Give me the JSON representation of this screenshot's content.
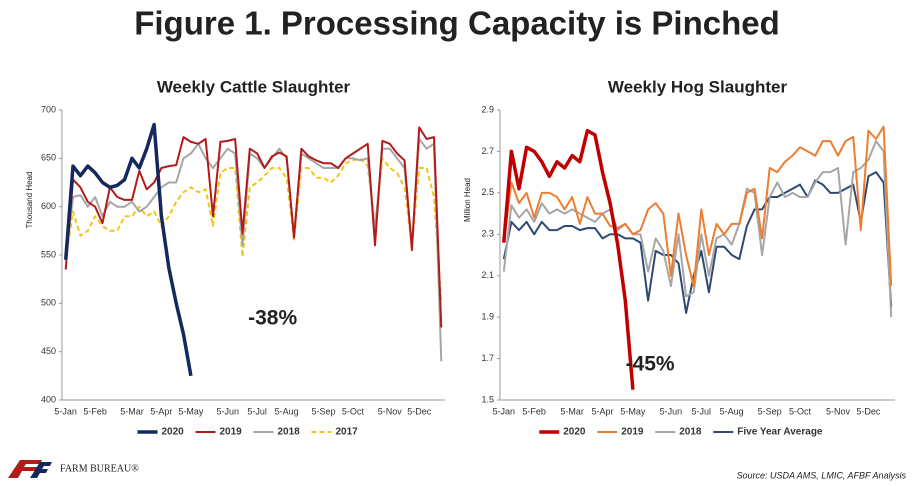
{
  "title": "Figure 1. Processing Capacity is Pinched",
  "source": "Source: USDA AMS, LMIC, AFBF Analysis",
  "logo": "FARM BUREAU®",
  "chart_data": [
    {
      "type": "line",
      "title": "Weekly Cattle Slaughter",
      "y_label": "Thousand Head",
      "annotation": "-38%",
      "annotation_color": "#1f3f7a",
      "categories": [
        "5-Jan",
        null,
        null,
        null,
        "5-Feb",
        null,
        null,
        null,
        null,
        "5-Mar",
        null,
        null,
        null,
        "5-Apr",
        null,
        null,
        null,
        "5-May",
        null,
        null,
        null,
        null,
        "5-Jun",
        null,
        null,
        null,
        "5-Jul",
        null,
        null,
        null,
        "5-Aug",
        null,
        null,
        null,
        null,
        "5-Sep",
        null,
        null,
        null,
        "5-Oct",
        null,
        null,
        null,
        null,
        "5-Nov",
        null,
        null,
        null,
        "5-Dec",
        null,
        null,
        null
      ],
      "ylim": [
        400,
        700
      ],
      "yticks": [
        400,
        450,
        500,
        550,
        600,
        650,
        700
      ],
      "series": [
        {
          "name": "2020",
          "color": "#14285e",
          "width": 3.5,
          "values": [
            545,
            642,
            632,
            642,
            635,
            625,
            620,
            622,
            628,
            650,
            640,
            660,
            685,
            590,
            537,
            500,
            468,
            425,
            null,
            null,
            null,
            null,
            null,
            null,
            null,
            null,
            null,
            null,
            null,
            null,
            null,
            null,
            null,
            null,
            null,
            null,
            null,
            null,
            null,
            null,
            null,
            null,
            null,
            null,
            null,
            null,
            null,
            null,
            null,
            null,
            null,
            null
          ]
        },
        {
          "name": "2019",
          "color": "#b31b1b",
          "width": 2,
          "values": [
            535,
            628,
            620,
            605,
            600,
            583,
            620,
            610,
            607,
            607,
            637,
            618,
            625,
            640,
            642,
            643,
            672,
            667,
            665,
            670,
            590,
            667,
            668,
            670,
            572,
            660,
            655,
            640,
            652,
            656,
            652,
            568,
            660,
            652,
            648,
            645,
            645,
            640,
            650,
            655,
            660,
            665,
            560,
            668,
            665,
            655,
            648,
            555,
            682,
            670,
            672,
            475
          ]
        },
        {
          "name": "2018",
          "color": "#a6a6a6",
          "width": 2,
          "values": [
            545,
            610,
            612,
            600,
            610,
            590,
            605,
            600,
            600,
            605,
            595,
            600,
            610,
            620,
            625,
            625,
            650,
            655,
            665,
            650,
            640,
            650,
            660,
            655,
            560,
            655,
            650,
            640,
            650,
            660,
            650,
            570,
            655,
            650,
            645,
            640,
            640,
            640,
            650,
            650,
            648,
            650,
            575,
            660,
            660,
            650,
            640,
            560,
            670,
            660,
            665,
            440
          ]
        },
        {
          "name": "2017",
          "color": "#f5c518",
          "width": 2,
          "dashed": true,
          "values": [
            545,
            595,
            570,
            575,
            590,
            580,
            575,
            575,
            590,
            590,
            600,
            590,
            595,
            580,
            590,
            605,
            615,
            620,
            615,
            618,
            580,
            635,
            640,
            640,
            548,
            620,
            625,
            632,
            640,
            640,
            630,
            566,
            640,
            640,
            630,
            630,
            625,
            632,
            645,
            648,
            650,
            642,
            580,
            650,
            640,
            635,
            620,
            560,
            640,
            640,
            610,
            500
          ]
        }
      ]
    },
    {
      "type": "line",
      "title": "Weekly Hog Slaughter",
      "y_label": "Million Head",
      "annotation": "-45%",
      "annotation_color": "#b31b1b",
      "categories": [
        "5-Jan",
        null,
        null,
        null,
        "5-Feb",
        null,
        null,
        null,
        null,
        "5-Mar",
        null,
        null,
        null,
        "5-Apr",
        null,
        null,
        null,
        "5-May",
        null,
        null,
        null,
        null,
        "5-Jun",
        null,
        null,
        null,
        "5-Jul",
        null,
        null,
        null,
        "5-Aug",
        null,
        null,
        null,
        null,
        "5-Sep",
        null,
        null,
        null,
        "5-Oct",
        null,
        null,
        null,
        null,
        "5-Nov",
        null,
        null,
        null,
        "5-Dec",
        null,
        null,
        null
      ],
      "ylim": [
        1.5,
        2.9
      ],
      "yticks": [
        1.5,
        1.7,
        1.9,
        2.1,
        2.3,
        2.5,
        2.7,
        2.9
      ],
      "series": [
        {
          "name": "2020",
          "color": "#c00000",
          "width": 3.5,
          "values": [
            2.26,
            2.7,
            2.52,
            2.72,
            2.7,
            2.65,
            2.58,
            2.65,
            2.62,
            2.68,
            2.65,
            2.8,
            2.78,
            2.6,
            2.45,
            2.25,
            1.98,
            1.55,
            null,
            null,
            null,
            null,
            null,
            null,
            null,
            null,
            null,
            null,
            null,
            null,
            null,
            null,
            null,
            null,
            null,
            null,
            null,
            null,
            null,
            null,
            null,
            null,
            null,
            null,
            null,
            null,
            null,
            null,
            null,
            null,
            null,
            null
          ]
        },
        {
          "name": "2019",
          "color": "#ed7d31",
          "width": 2,
          "values": [
            2.26,
            2.55,
            2.45,
            2.5,
            2.38,
            2.5,
            2.5,
            2.48,
            2.42,
            2.48,
            2.35,
            2.48,
            2.4,
            2.4,
            2.34,
            2.33,
            2.35,
            2.3,
            2.32,
            2.42,
            2.45,
            2.4,
            2.1,
            2.4,
            2.2,
            2.05,
            2.42,
            2.2,
            2.35,
            2.3,
            2.35,
            2.35,
            2.5,
            2.52,
            2.28,
            2.62,
            2.6,
            2.65,
            2.68,
            2.72,
            2.7,
            2.68,
            2.75,
            2.75,
            2.68,
            2.75,
            2.77,
            2.32,
            2.8,
            2.76,
            2.82,
            2.05
          ]
        },
        {
          "name": "2018",
          "color": "#a6a6a6",
          "width": 2,
          "values": [
            2.12,
            2.44,
            2.38,
            2.42,
            2.36,
            2.45,
            2.4,
            2.42,
            2.4,
            2.42,
            2.4,
            2.38,
            2.36,
            2.4,
            2.42,
            2.32,
            2.35,
            2.3,
            2.3,
            2.12,
            2.28,
            2.22,
            2.05,
            2.3,
            2.0,
            2.02,
            2.3,
            2.1,
            2.28,
            2.3,
            2.25,
            2.35,
            2.52,
            2.5,
            2.2,
            2.48,
            2.55,
            2.48,
            2.5,
            2.48,
            2.48,
            2.55,
            2.6,
            2.6,
            2.62,
            2.25,
            2.6,
            2.62,
            2.66,
            2.75,
            2.7,
            1.9
          ]
        },
        {
          "name": "Five Year Average",
          "color": "#2e4a72",
          "width": 2,
          "values": [
            2.18,
            2.36,
            2.32,
            2.36,
            2.3,
            2.36,
            2.32,
            2.32,
            2.34,
            2.34,
            2.32,
            2.33,
            2.33,
            2.28,
            2.3,
            2.3,
            2.28,
            2.28,
            2.26,
            1.98,
            2.22,
            2.2,
            2.2,
            2.16,
            1.92,
            2.1,
            2.22,
            2.02,
            2.24,
            2.24,
            2.2,
            2.18,
            2.34,
            2.42,
            2.42,
            2.48,
            2.48,
            2.5,
            2.52,
            2.54,
            2.48,
            2.56,
            2.54,
            2.5,
            2.5,
            2.52,
            2.54,
            2.36,
            2.58,
            2.6,
            2.55,
            1.95
          ]
        }
      ]
    }
  ]
}
